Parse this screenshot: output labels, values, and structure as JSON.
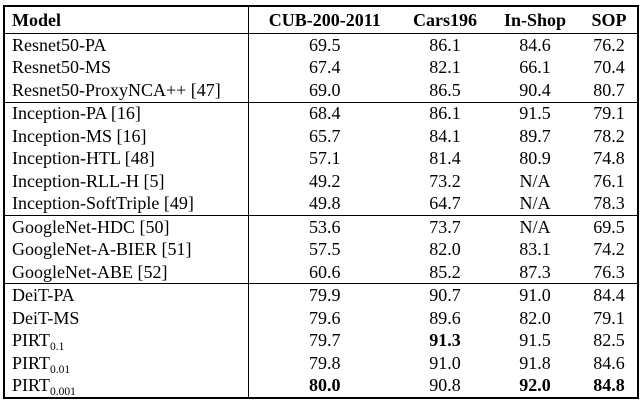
{
  "page": {
    "background": "#ffffff",
    "text_color": "#000000",
    "border_color": "#000000"
  },
  "table": {
    "header": [
      "Model",
      "CUB-200-2011",
      "Cars196",
      "In-Shop",
      "SOP"
    ],
    "groups": [
      {
        "name": "resnet50",
        "rows": [
          {
            "model": "Resnet50-PA",
            "model_sub": "",
            "values": [
              "69.5",
              "86.1",
              "84.6",
              "76.2"
            ],
            "bold": []
          },
          {
            "model": "Resnet50-MS",
            "model_sub": "",
            "values": [
              "67.4",
              "82.1",
              "66.1",
              "70.4"
            ],
            "bold": []
          },
          {
            "model": "Resnet50-ProxyNCA++ [47]",
            "model_sub": "",
            "values": [
              "69.0",
              "86.5",
              "90.4",
              "80.7"
            ],
            "bold": []
          }
        ]
      },
      {
        "name": "inception",
        "rows": [
          {
            "model": "Inception-PA [16]",
            "model_sub": "",
            "values": [
              "68.4",
              "86.1",
              "91.5",
              "79.1"
            ],
            "bold": []
          },
          {
            "model": "Inception-MS [16]",
            "model_sub": "",
            "values": [
              "65.7",
              "84.1",
              "89.7",
              "78.2"
            ],
            "bold": []
          },
          {
            "model": "Inception-HTL [48]",
            "model_sub": "",
            "values": [
              "57.1",
              "81.4",
              "80.9",
              "74.8"
            ],
            "bold": []
          },
          {
            "model": "Inception-RLL-H [5]",
            "model_sub": "",
            "values": [
              "49.2",
              "73.2",
              "N/A",
              "76.1"
            ],
            "bold": []
          },
          {
            "model": "Inception-SoftTriple [49]",
            "model_sub": "",
            "values": [
              "49.8",
              "64.7",
              "N/A",
              "78.3"
            ],
            "bold": []
          }
        ]
      },
      {
        "name": "googlenet",
        "rows": [
          {
            "model": "GoogleNet-HDC [50]",
            "model_sub": "",
            "values": [
              "53.6",
              "73.7",
              "N/A",
              "69.5"
            ],
            "bold": []
          },
          {
            "model": "GoogleNet-A-BIER [51]",
            "model_sub": "",
            "values": [
              "57.5",
              "82.0",
              "83.1",
              "74.2"
            ],
            "bold": []
          },
          {
            "model": "GoogleNet-ABE [52]",
            "model_sub": "",
            "values": [
              "60.6",
              "85.2",
              "87.3",
              "76.3"
            ],
            "bold": []
          }
        ]
      },
      {
        "name": "deit-pirt",
        "rows": [
          {
            "model": "DeiT-PA",
            "model_sub": "",
            "values": [
              "79.9",
              "90.7",
              "91.0",
              "84.4"
            ],
            "bold": []
          },
          {
            "model": "DeiT-MS",
            "model_sub": "",
            "values": [
              "79.6",
              "89.6",
              "82.0",
              "79.1"
            ],
            "bold": []
          },
          {
            "model": "PIRT",
            "model_sub": "0.1",
            "values": [
              "79.7",
              "91.3",
              "91.5",
              "82.5"
            ],
            "bold": [
              1
            ]
          },
          {
            "model": "PIRT",
            "model_sub": "0.01",
            "values": [
              "79.8",
              "91.0",
              "91.8",
              "84.6"
            ],
            "bold": []
          },
          {
            "model": "PIRT",
            "model_sub": "0.001",
            "values": [
              "80.0",
              "90.8",
              "92.0",
              "84.8"
            ],
            "bold": [
              0,
              2,
              3
            ]
          }
        ]
      }
    ]
  }
}
